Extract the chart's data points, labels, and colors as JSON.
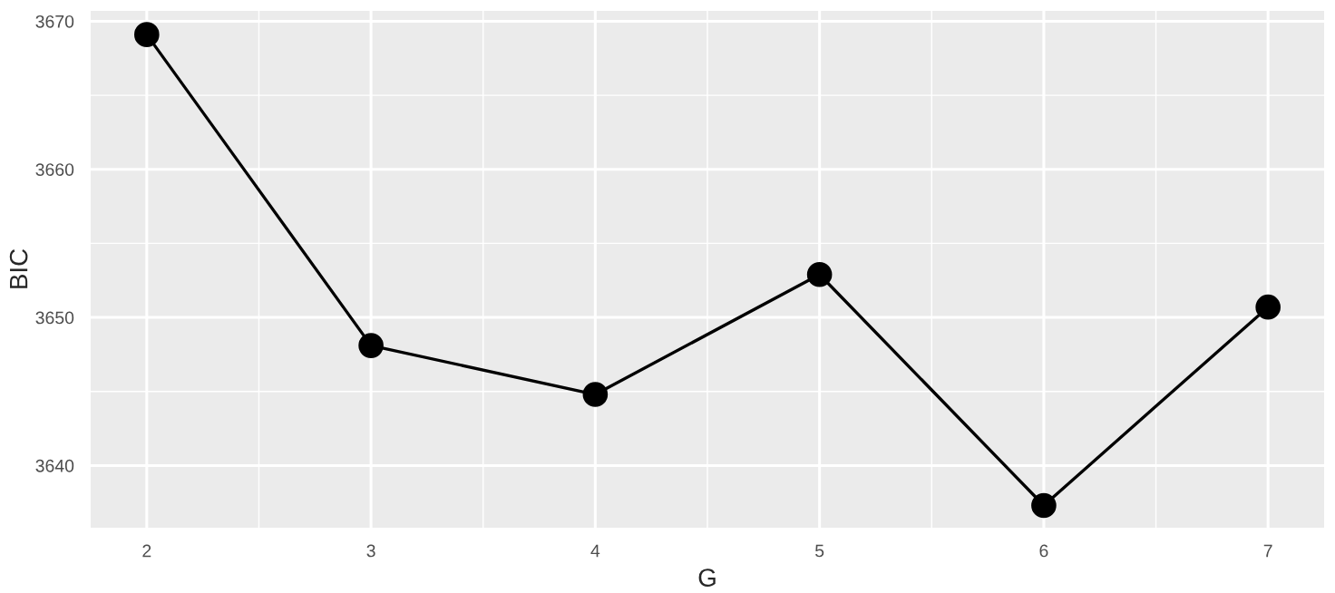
{
  "chart_data": {
    "type": "line",
    "xlabel": "G",
    "ylabel": "BIC",
    "x": [
      2,
      3,
      4,
      5,
      6,
      7
    ],
    "series": [
      {
        "color": "#000000",
        "values": [
          3669.1,
          3648.1,
          3644.8,
          3652.9,
          3637.3,
          3650.7
        ]
      }
    ],
    "xlim": [
      1.75,
      7.25
    ],
    "ylim": [
      3635.8,
      3670.7
    ],
    "xticks": [
      2,
      3,
      4,
      5,
      6,
      7
    ],
    "yticks": [
      3640,
      3650,
      3660,
      3670
    ],
    "grid": true,
    "marker": "circle",
    "line_style": "solid"
  }
}
